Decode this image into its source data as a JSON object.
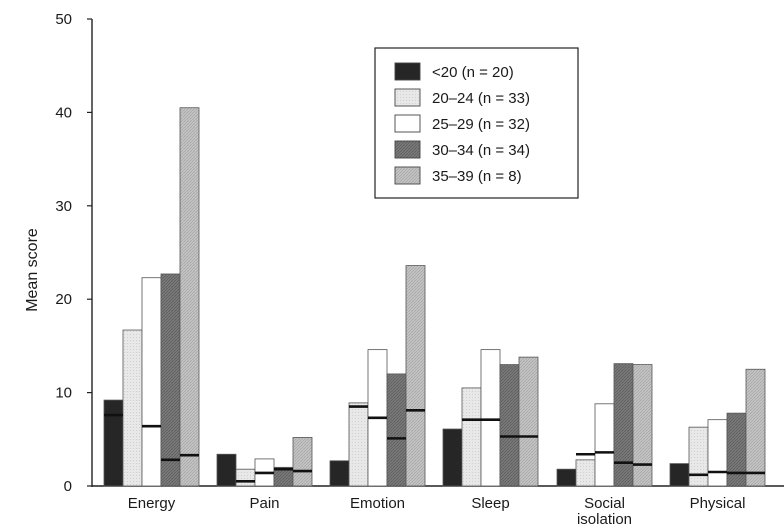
{
  "chart_data": {
    "type": "bar",
    "ylabel": "Mean score",
    "xlabel": "",
    "ylim": [
      0,
      50
    ],
    "yticks": [
      0,
      10,
      20,
      30,
      40,
      50
    ],
    "categories": [
      "Energy",
      "Pain",
      "Emotion",
      "Sleep",
      "Social isolation",
      "Physical"
    ],
    "category_lines": [
      [
        "Energy"
      ],
      [
        "Pain"
      ],
      [
        "Emotion"
      ],
      [
        "Sleep"
      ],
      [
        "Social",
        "isolation"
      ],
      [
        "Physical"
      ]
    ],
    "legend_position": "top-right",
    "series": [
      {
        "name": "<20 (n = 20)",
        "color": "#262626",
        "values": [
          9.2,
          3.4,
          2.7,
          6.1,
          1.8,
          2.4
        ],
        "medians": [
          7.6,
          null,
          null,
          null,
          null,
          null
        ]
      },
      {
        "name": "20–24 (n = 33)",
        "color": "#e6e6e6",
        "values": [
          16.7,
          1.8,
          8.9,
          10.5,
          2.8,
          6.3
        ],
        "medians": [
          null,
          0.5,
          8.5,
          7.1,
          3.4,
          1.2
        ]
      },
      {
        "name": "25–29 (n = 32)",
        "color": "#ffffff",
        "values": [
          22.3,
          2.9,
          14.6,
          14.6,
          8.8,
          7.1
        ],
        "medians": [
          6.4,
          1.4,
          7.3,
          7.1,
          3.6,
          1.5
        ]
      },
      {
        "name": "30–34 (n = 34)",
        "color": "#7a7a7a",
        "values": [
          22.7,
          2.0,
          12.0,
          13.0,
          13.1,
          7.8
        ],
        "medians": [
          2.8,
          1.8,
          5.1,
          5.3,
          2.5,
          1.4
        ]
      },
      {
        "name": "35–39 (n = 8)",
        "color": "#c4c4c4",
        "values": [
          40.5,
          5.2,
          23.6,
          13.8,
          13.0,
          12.5
        ],
        "medians": [
          3.3,
          1.6,
          8.1,
          5.3,
          2.3,
          1.4
        ]
      }
    ]
  }
}
